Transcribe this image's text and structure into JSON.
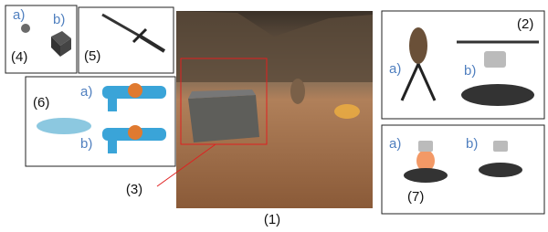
{
  "main": {
    "label": "(1)",
    "callout": "(3)"
  },
  "panels": [
    {
      "label": "(4)",
      "items": [
        "a)",
        "b)"
      ]
    },
    {
      "label": "(5)"
    },
    {
      "label": "(6)",
      "items": [
        "a)",
        "b)"
      ]
    },
    {
      "label": "(2)",
      "items": [
        "a)",
        "b)"
      ]
    },
    {
      "label": "(7)",
      "items": [
        "a)",
        "b)"
      ]
    }
  ]
}
